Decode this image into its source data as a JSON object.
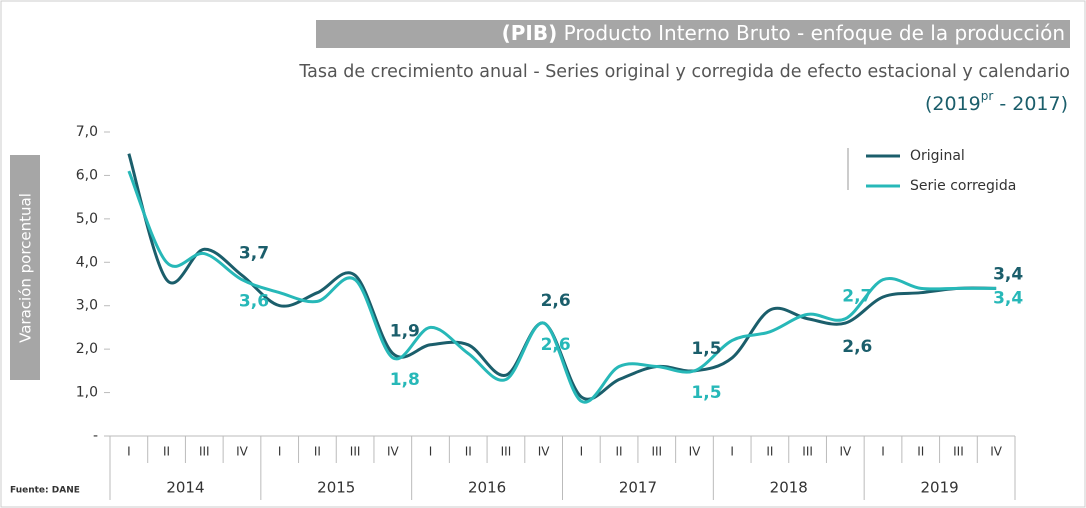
{
  "chart_data": {
    "type": "line",
    "title_bold": "(PIB)",
    "title": "Producto Interno Bruto  - enfoque de la producción",
    "subtitle": "Tasa de crecimiento anual - Series original y corregida de efecto estacional y calendario",
    "period": [
      "(2019",
      "pr",
      " - 2017)"
    ],
    "ylabel": "Varación porcentual",
    "source": "Fuente: DANE",
    "categories": [
      "I",
      "II",
      "III",
      "IV",
      "I",
      "II",
      "III",
      "IV",
      "I",
      "II",
      "III",
      "IV",
      "I",
      "II",
      "III",
      "IV",
      "I",
      "II",
      "III",
      "IV",
      "I",
      "II",
      "III",
      "IV"
    ],
    "years": [
      "2014",
      "2015",
      "2016",
      "2017",
      "2018",
      "2019"
    ],
    "ylim": [
      0,
      7
    ],
    "yticks": [
      {
        "value": 0,
        "label": "-"
      },
      {
        "value": 1,
        "label": "1,0"
      },
      {
        "value": 2,
        "label": "2,0"
      },
      {
        "value": 3,
        "label": "3,0"
      },
      {
        "value": 4,
        "label": "4,0"
      },
      {
        "value": 5,
        "label": "5,0"
      },
      {
        "value": 6,
        "label": "6,0"
      },
      {
        "value": 7,
        "label": "7,0"
      }
    ],
    "legend": "top-right",
    "series": [
      {
        "name": "Original",
        "color": "#1b5e6b",
        "values": [
          6.5,
          3.6,
          4.3,
          3.7,
          3.0,
          3.3,
          3.7,
          1.9,
          2.1,
          2.1,
          1.4,
          2.6,
          0.9,
          1.3,
          1.6,
          1.5,
          1.8,
          2.9,
          2.7,
          2.6,
          3.2,
          3.3,
          3.4,
          3.4
        ],
        "value_labels": [
          null,
          null,
          null,
          "3,7",
          null,
          null,
          null,
          "1,9",
          null,
          null,
          null,
          "2,6",
          null,
          null,
          null,
          "1,5",
          null,
          null,
          null,
          "2,6",
          null,
          null,
          null,
          "3,4"
        ]
      },
      {
        "name": "Serie corregida",
        "color": "#27b8b8",
        "values": [
          6.1,
          4.0,
          4.2,
          3.6,
          3.3,
          3.1,
          3.6,
          1.8,
          2.5,
          1.9,
          1.3,
          2.6,
          0.8,
          1.6,
          1.6,
          1.5,
          2.2,
          2.4,
          2.8,
          2.7,
          3.6,
          3.4,
          3.4,
          3.4
        ],
        "value_labels": [
          null,
          null,
          null,
          "3,6",
          null,
          null,
          null,
          "1,8",
          null,
          null,
          null,
          "2,6",
          null,
          null,
          null,
          "1,5",
          null,
          null,
          null,
          "2,7",
          null,
          null,
          null,
          "3,4"
        ]
      }
    ]
  }
}
